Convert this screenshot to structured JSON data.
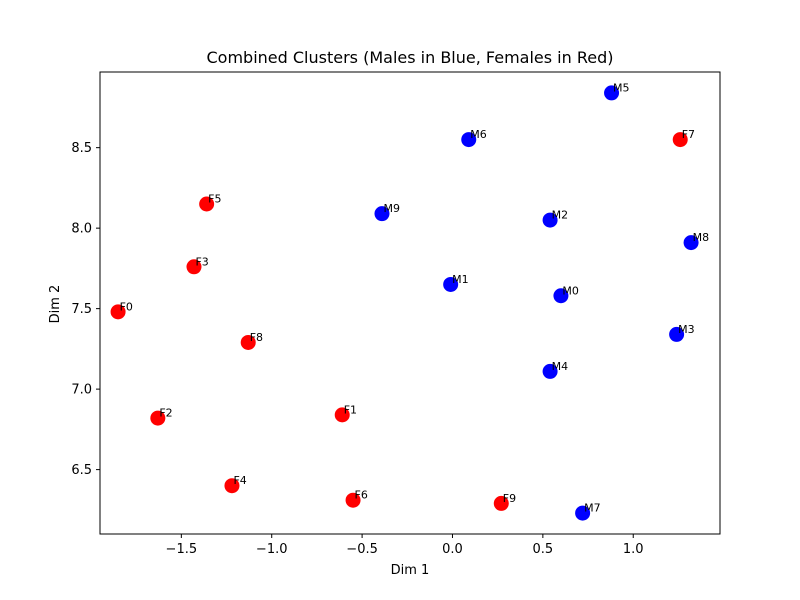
{
  "chart_data": {
    "type": "scatter",
    "title": "Combined Clusters (Males in Blue, Females in Red)",
    "xlabel": "Dim 1",
    "ylabel": "Dim 2",
    "xlim": [
      -1.95,
      1.48
    ],
    "ylim": [
      6.1,
      8.97
    ],
    "xticks": [
      -1.5,
      -1.0,
      -0.5,
      0.0,
      0.5,
      1.0
    ],
    "xtick_labels": [
      "−1.5",
      "−1.0",
      "−0.5",
      "0.0",
      "0.5",
      "1.0"
    ],
    "yticks": [
      6.5,
      7.0,
      7.5,
      8.0,
      8.5
    ],
    "ytick_labels": [
      "6.5",
      "7.0",
      "7.5",
      "8.0",
      "8.5"
    ],
    "grid": false,
    "series": [
      {
        "color": "#0000ff",
        "points": [
          {
            "label": "M0",
            "x": 0.6,
            "y": 7.58
          },
          {
            "label": "M1",
            "x": -0.01,
            "y": 7.65
          },
          {
            "label": "M2",
            "x": 0.54,
            "y": 8.05
          },
          {
            "label": "M3",
            "x": 1.24,
            "y": 7.34
          },
          {
            "label": "M4",
            "x": 0.54,
            "y": 7.11
          },
          {
            "label": "M5",
            "x": 0.88,
            "y": 8.84
          },
          {
            "label": "M6",
            "x": 0.09,
            "y": 8.55
          },
          {
            "label": "M7",
            "x": 0.72,
            "y": 6.23
          },
          {
            "label": "M8",
            "x": 1.32,
            "y": 7.91
          },
          {
            "label": "M9",
            "x": -0.39,
            "y": 8.09
          }
        ]
      },
      {
        "color": "#ff0000",
        "points": [
          {
            "label": "F0",
            "x": -1.85,
            "y": 7.48
          },
          {
            "label": "F1",
            "x": -0.61,
            "y": 6.84
          },
          {
            "label": "F2",
            "x": -1.63,
            "y": 6.82
          },
          {
            "label": "F3",
            "x": -1.43,
            "y": 7.76
          },
          {
            "label": "F4",
            "x": -1.22,
            "y": 6.4
          },
          {
            "label": "F5",
            "x": -1.36,
            "y": 8.15
          },
          {
            "label": "F6",
            "x": -0.55,
            "y": 6.31
          },
          {
            "label": "F7",
            "x": 1.26,
            "y": 8.55
          },
          {
            "label": "F8",
            "x": -1.13,
            "y": 7.29
          },
          {
            "label": "F9",
            "x": 0.27,
            "y": 6.29
          }
        ]
      }
    ]
  }
}
